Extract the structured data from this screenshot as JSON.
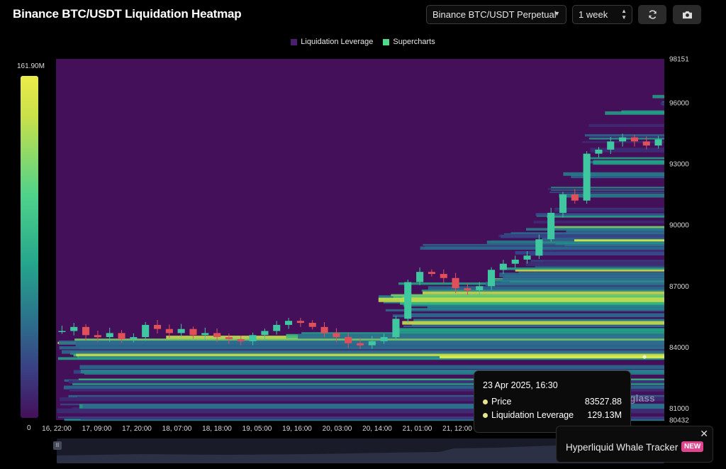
{
  "header": {
    "title": "Binance BTC/USDT Liquidation Heatmap",
    "pair_select": "Binance BTC/USDT Perpetual",
    "range_select": "1 week",
    "refresh_icon": "refresh-icon",
    "camera_icon": "camera-icon"
  },
  "legend": {
    "items": [
      {
        "label": "Liquidation Leverage",
        "color": "#4a1d6e"
      },
      {
        "label": "Supercharts",
        "color": "#4fd88a"
      }
    ]
  },
  "colorbar": {
    "max_label": "161.90M",
    "min_label": "0"
  },
  "chart_data": {
    "type": "heatmap",
    "title": "Binance BTC/USDT Liquidation Heatmap",
    "x_tick_labels": [
      "16, 22:00",
      "17, 09:00",
      "17, 20:00",
      "18, 07:00",
      "18, 18:00",
      "19, 05:00",
      "19, 16:00",
      "20, 03:00",
      "20, 14:00",
      "21, 01:00",
      "21, 12:00"
    ],
    "y_tick_labels": [
      "98151",
      "96000",
      "93000",
      "90000",
      "87000",
      "84000",
      "81000",
      "80432"
    ],
    "ylim": [
      80432,
      98151
    ],
    "colorscale_range": [
      0,
      161.9
    ],
    "colorscale_unit": "M",
    "price_series_close": [
      84800,
      85000,
      84600,
      84500,
      84700,
      84400,
      84500,
      85100,
      84900,
      84700,
      84900,
      84600,
      84700,
      84500,
      84400,
      84300,
      84600,
      84800,
      85100,
      85300,
      85200,
      85000,
      84700,
      84500,
      84200,
      84100,
      84300,
      84500,
      85400,
      87200,
      87700,
      87600,
      87400,
      86900,
      86800,
      87000,
      87800,
      88100,
      88300,
      88500,
      89300,
      90600,
      91500,
      91200,
      93500,
      93700,
      94100,
      94300,
      94100,
      93900,
      94200
    ]
  },
  "tooltip": {
    "date": "23 Apr 2025, 16:30",
    "rows": [
      {
        "label": "Price",
        "value": "83527.88"
      },
      {
        "label": "Liquidation Leverage",
        "value": "129.13M"
      }
    ]
  },
  "watermark": "glass",
  "promo": {
    "text": "Hyperliquid Whale Tracker",
    "badge": "NEW",
    "close_icon": "close-icon"
  }
}
